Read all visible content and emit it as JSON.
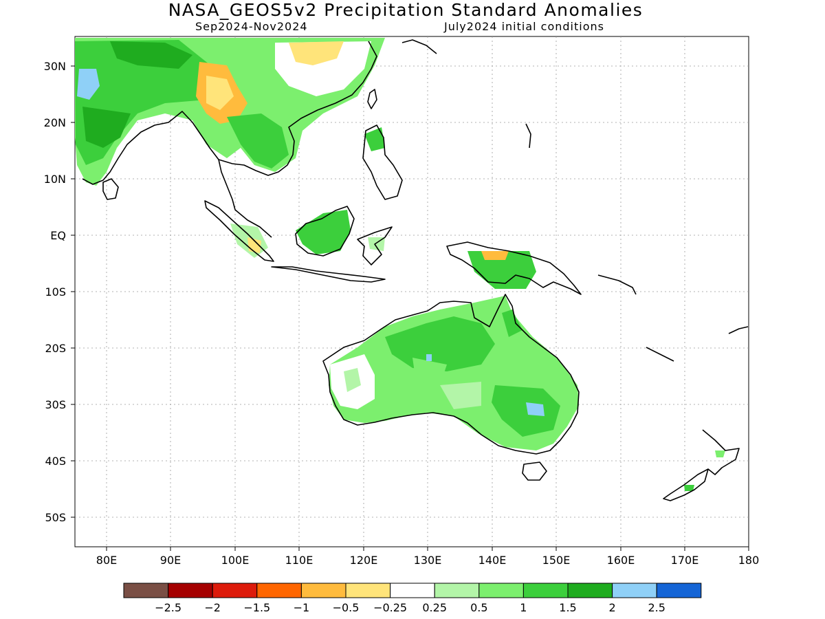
{
  "title": "NASA_GEOS5v2 Precipitation Standard Anomalies",
  "subtitle_left": "Sep2024-Nov2024",
  "subtitle_right": "July2024 initial conditions",
  "lat_labels": [
    "30N",
    "20N",
    "10N",
    "EQ",
    "10S",
    "20S",
    "30S",
    "40S",
    "50S"
  ],
  "lon_labels": [
    "80E",
    "90E",
    "100E",
    "110E",
    "120E",
    "130E",
    "140E",
    "150E",
    "160E",
    "170E",
    "180"
  ],
  "colorbar": {
    "colors": [
      "#7a4f45",
      "#a50000",
      "#dd1b0b",
      "#ff6600",
      "#ffbb3d",
      "#ffe47a",
      "#ffffff",
      "#b3f5a8",
      "#7cef6e",
      "#3ccf3c",
      "#1fac1f",
      "#8fd0f7",
      "#1565d6"
    ],
    "labels": [
      "−2.5",
      "−2",
      "−1.5",
      "−1",
      "−0.5",
      "−0.25",
      "0.25",
      "0.5",
      "1",
      "1.5",
      "2",
      "2.5"
    ]
  }
}
